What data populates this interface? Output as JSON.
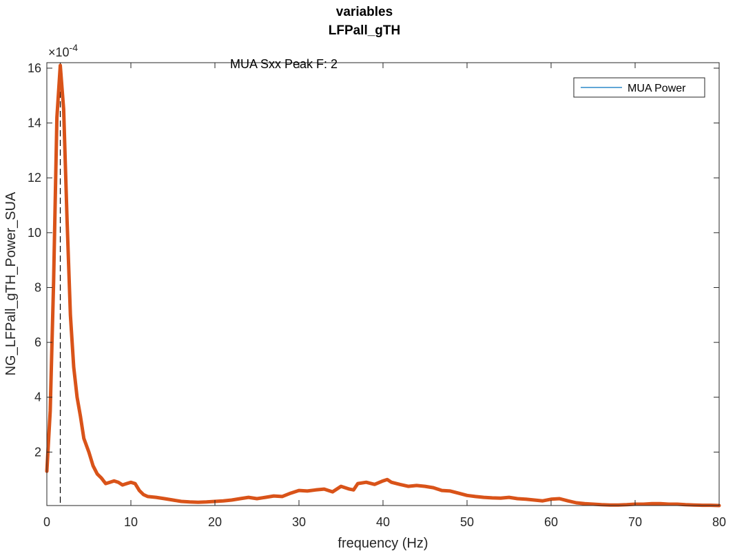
{
  "chart_data": {
    "type": "line",
    "title": [
      "variables",
      "LFPall_gTH"
    ],
    "xlabel": "frequency (Hz)",
    "ylabel": "NG_LFPall_gTH_Power_SUA",
    "y_exponent_label": "×10",
    "y_exponent_power": "-4",
    "xlim": [
      0,
      80
    ],
    "ylim": [
      0.05,
      16.2
    ],
    "xticks": [
      0,
      10,
      20,
      30,
      40,
      50,
      60,
      70,
      80
    ],
    "yticks": [
      2,
      4,
      6,
      8,
      10,
      12,
      14,
      16
    ],
    "grid": false,
    "box": true,
    "legend": {
      "location": "top-right",
      "entries": [
        "MUA Power"
      ]
    },
    "annotation": {
      "text": "MUA Sxx Peak F: 2",
      "x": 21.8,
      "y": 16.0
    },
    "peak_marker": {
      "x": 1.6,
      "style": "dashed-vertical"
    },
    "colors": {
      "series": "#D95319",
      "legend_line": "#0072BD",
      "marker": "#000000"
    },
    "series": [
      {
        "x": [
          0,
          0.4,
          0.8,
          1.2,
          1.6,
          2.0,
          2.4,
          2.8,
          3.2,
          3.6,
          4.0,
          4.4,
          5.0,
          5.5,
          6.0,
          6.5,
          7.0,
          7.5,
          8.0,
          8.5,
          9.0,
          9.5,
          10.0,
          10.5,
          11.0,
          11.5,
          12.0,
          13.0,
          14.0,
          15.0,
          16.0,
          17.0,
          18.0,
          19.0,
          20.0,
          21.0,
          22.0,
          23.0,
          24.0,
          25.0,
          26.0,
          27.0,
          28.0,
          29.0,
          30.0,
          31.0,
          32.0,
          33.0,
          34.0,
          35.0,
          36.0,
          36.5,
          37.0,
          38.0,
          39.0,
          40.0,
          40.5,
          41.0,
          42.0,
          43.0,
          44.0,
          45.0,
          46.0,
          47.0,
          48.0,
          49.0,
          50.0,
          51.0,
          52.0,
          53.0,
          54.0,
          55.0,
          56.0,
          57.0,
          58.0,
          59.0,
          60.0,
          61.0,
          62.0,
          63.0,
          64.0,
          65.0,
          66.0,
          67.0,
          68.0,
          69.0,
          70.0,
          71.0,
          72.0,
          73.0,
          74.0,
          75.0,
          76.0,
          77.0,
          78.0,
          79.0,
          80.0
        ],
        "y": [
          1.3,
          3.5,
          8.2,
          14.2,
          16.1,
          14.5,
          10.5,
          7.0,
          5.1,
          4.0,
          3.3,
          2.5,
          2.0,
          1.5,
          1.2,
          1.05,
          0.85,
          0.9,
          0.95,
          0.9,
          0.8,
          0.85,
          0.9,
          0.85,
          0.6,
          0.45,
          0.38,
          0.35,
          0.3,
          0.25,
          0.2,
          0.18,
          0.17,
          0.18,
          0.2,
          0.22,
          0.25,
          0.3,
          0.35,
          0.3,
          0.35,
          0.4,
          0.38,
          0.5,
          0.6,
          0.58,
          0.62,
          0.65,
          0.55,
          0.75,
          0.65,
          0.62,
          0.85,
          0.9,
          0.82,
          0.95,
          1.0,
          0.9,
          0.82,
          0.75,
          0.78,
          0.75,
          0.7,
          0.6,
          0.58,
          0.5,
          0.42,
          0.38,
          0.35,
          0.33,
          0.32,
          0.35,
          0.3,
          0.28,
          0.25,
          0.22,
          0.28,
          0.3,
          0.22,
          0.15,
          0.12,
          0.1,
          0.08,
          0.07,
          0.07,
          0.08,
          0.1,
          0.1,
          0.12,
          0.12,
          0.1,
          0.1,
          0.08,
          0.07,
          0.06,
          0.06,
          0.05
        ]
      }
    ]
  }
}
